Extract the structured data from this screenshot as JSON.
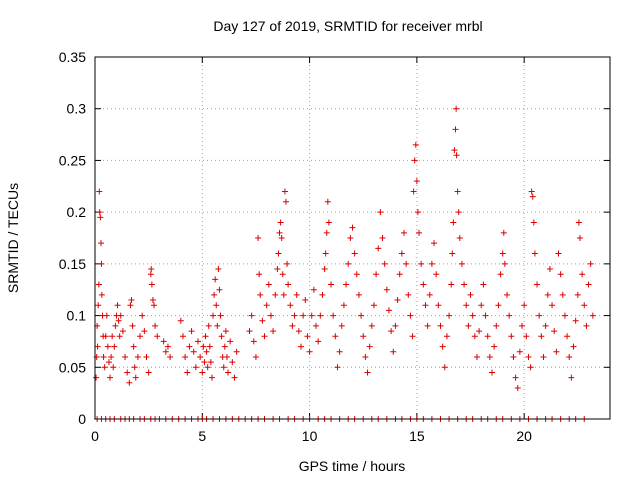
{
  "chart_data": {
    "type": "scatter",
    "title": "Day 127 of 2019, SRMTID for receiver mrbl",
    "xlabel": "GPS time / hours",
    "ylabel": "SRMTID / TECUs",
    "xlim": [
      0,
      24
    ],
    "ylim": [
      0,
      0.35
    ],
    "xticks": [
      0,
      5,
      10,
      15,
      20
    ],
    "yticks": [
      0,
      0.05,
      0.1,
      0.15,
      0.2,
      0.25,
      0.3,
      0.35
    ],
    "ytick_labels": [
      "0",
      "0.05",
      "0.1",
      "0.15",
      "0.2",
      "0.25",
      "0.3",
      "0.35"
    ],
    "marker": "+",
    "color": "#dd0000",
    "grid": true,
    "series": [
      {
        "name": "SRMTID",
        "points": [
          [
            0.05,
            0.04
          ],
          [
            0.08,
            0.06
          ],
          [
            0.1,
            0.09
          ],
          [
            0.12,
            0.07
          ],
          [
            0.15,
            0.11
          ],
          [
            0.18,
            0.13
          ],
          [
            0.2,
            0.22
          ],
          [
            0.22,
            0.2
          ],
          [
            0.25,
            0.195
          ],
          [
            0.28,
            0.17
          ],
          [
            0.3,
            0.15
          ],
          [
            0.32,
            0.12
          ],
          [
            0.35,
            0.1
          ],
          [
            0.38,
            0.08
          ],
          [
            0.4,
            0.06
          ],
          [
            0.45,
            0.05
          ],
          [
            0.5,
            0.08
          ],
          [
            0.55,
            0.1
          ],
          [
            0.6,
            0.07
          ],
          [
            0.65,
            0.055
          ],
          [
            0.7,
            0.04
          ],
          [
            0.75,
            0.06
          ],
          [
            0.8,
            0.08
          ],
          [
            0.85,
            0.05
          ],
          [
            0.9,
            0.07
          ],
          [
            0.95,
            0.09
          ],
          [
            1.0,
            0.1
          ],
          [
            1.05,
            0.11
          ],
          [
            1.1,
            0.095
          ],
          [
            1.15,
            0.08
          ],
          [
            1.2,
            0.1
          ],
          [
            1.3,
            0.085
          ],
          [
            1.4,
            0.06
          ],
          [
            1.5,
            0.045
          ],
          [
            1.6,
            0.035
          ],
          [
            1.65,
            0.11
          ],
          [
            1.7,
            0.115
          ],
          [
            1.75,
            0.09
          ],
          [
            1.8,
            0.07
          ],
          [
            1.85,
            0.05
          ],
          [
            1.9,
            0.04
          ],
          [
            2.0,
            0.06
          ],
          [
            2.1,
            0.08
          ],
          [
            2.2,
            0.1
          ],
          [
            2.3,
            0.085
          ],
          [
            2.4,
            0.06
          ],
          [
            2.5,
            0.045
          ],
          [
            2.6,
            0.14
          ],
          [
            2.62,
            0.145
          ],
          [
            2.65,
            0.13
          ],
          [
            2.7,
            0.115
          ],
          [
            2.75,
            0.11
          ],
          [
            2.8,
            0.09
          ],
          [
            2.9,
            0.08
          ],
          [
            3.2,
            0.075
          ],
          [
            3.3,
            0.065
          ],
          [
            3.4,
            0.07
          ],
          [
            3.5,
            0.06
          ],
          [
            4.0,
            0.095
          ],
          [
            4.1,
            0.08
          ],
          [
            4.2,
            0.06
          ],
          [
            4.3,
            0.045
          ],
          [
            4.4,
            0.07
          ],
          [
            4.5,
            0.085
          ],
          [
            4.6,
            0.065
          ],
          [
            4.7,
            0.05
          ],
          [
            4.8,
            0.075
          ],
          [
            4.9,
            0.06
          ],
          [
            5.0,
            0.045
          ],
          [
            5.05,
            0.07
          ],
          [
            5.1,
            0.055
          ],
          [
            5.15,
            0.08
          ],
          [
            5.2,
            0.065
          ],
          [
            5.25,
            0.05
          ],
          [
            5.3,
            0.09
          ],
          [
            5.35,
            0.07
          ],
          [
            5.4,
            0.055
          ],
          [
            5.45,
            0.04
          ],
          [
            5.5,
            0.1
          ],
          [
            5.55,
            0.12
          ],
          [
            5.6,
            0.135
          ],
          [
            5.65,
            0.11
          ],
          [
            5.7,
            0.09
          ],
          [
            5.75,
            0.145
          ],
          [
            5.8,
            0.125
          ],
          [
            5.85,
            0.1
          ],
          [
            5.9,
            0.08
          ],
          [
            5.95,
            0.06
          ],
          [
            6.0,
            0.05
          ],
          [
            6.05,
            0.07
          ],
          [
            6.1,
            0.085
          ],
          [
            6.15,
            0.06
          ],
          [
            6.2,
            0.045
          ],
          [
            6.3,
            0.075
          ],
          [
            6.4,
            0.055
          ],
          [
            6.5,
            0.04
          ],
          [
            6.6,
            0.065
          ],
          [
            7.2,
            0.085
          ],
          [
            7.3,
            0.1
          ],
          [
            7.4,
            0.075
          ],
          [
            7.5,
            0.06
          ],
          [
            7.6,
            0.175
          ],
          [
            7.65,
            0.14
          ],
          [
            7.7,
            0.12
          ],
          [
            7.8,
            0.095
          ],
          [
            7.9,
            0.08
          ],
          [
            8.0,
            0.11
          ],
          [
            8.1,
            0.13
          ],
          [
            8.2,
            0.1
          ],
          [
            8.3,
            0.085
          ],
          [
            8.4,
            0.12
          ],
          [
            8.5,
            0.145
          ],
          [
            8.55,
            0.16
          ],
          [
            8.6,
            0.18
          ],
          [
            8.65,
            0.19
          ],
          [
            8.7,
            0.175
          ],
          [
            8.75,
            0.14
          ],
          [
            8.8,
            0.12
          ],
          [
            8.85,
            0.22
          ],
          [
            8.9,
            0.21
          ],
          [
            8.95,
            0.15
          ],
          [
            9.0,
            0.13
          ],
          [
            9.1,
            0.11
          ],
          [
            9.2,
            0.09
          ],
          [
            9.3,
            0.1
          ],
          [
            9.4,
            0.12
          ],
          [
            9.5,
            0.085
          ],
          [
            9.6,
            0.07
          ],
          [
            9.7,
            0.1
          ],
          [
            9.8,
            0.115
          ],
          [
            9.9,
            0.08
          ],
          [
            10.0,
            0.065
          ],
          [
            10.1,
            0.1
          ],
          [
            10.2,
            0.125
          ],
          [
            10.3,
            0.09
          ],
          [
            10.4,
            0.075
          ],
          [
            10.5,
            0.1
          ],
          [
            10.6,
            0.12
          ],
          [
            10.7,
            0.145
          ],
          [
            10.75,
            0.16
          ],
          [
            10.8,
            0.18
          ],
          [
            10.85,
            0.21
          ],
          [
            10.9,
            0.19
          ],
          [
            11.0,
            0.13
          ],
          [
            11.1,
            0.1
          ],
          [
            11.2,
            0.08
          ],
          [
            11.3,
            0.05
          ],
          [
            11.4,
            0.065
          ],
          [
            11.5,
            0.09
          ],
          [
            11.6,
            0.11
          ],
          [
            11.7,
            0.13
          ],
          [
            11.8,
            0.15
          ],
          [
            11.9,
            0.175
          ],
          [
            12.0,
            0.185
          ],
          [
            12.1,
            0.16
          ],
          [
            12.2,
            0.14
          ],
          [
            12.3,
            0.12
          ],
          [
            12.4,
            0.1
          ],
          [
            12.5,
            0.08
          ],
          [
            12.6,
            0.06
          ],
          [
            12.7,
            0.045
          ],
          [
            12.8,
            0.07
          ],
          [
            12.9,
            0.09
          ],
          [
            13.0,
            0.11
          ],
          [
            13.1,
            0.14
          ],
          [
            13.2,
            0.165
          ],
          [
            13.3,
            0.2
          ],
          [
            13.4,
            0.175
          ],
          [
            13.5,
            0.15
          ],
          [
            13.6,
            0.125
          ],
          [
            13.7,
            0.105
          ],
          [
            13.8,
            0.085
          ],
          [
            13.9,
            0.065
          ],
          [
            14.0,
            0.09
          ],
          [
            14.1,
            0.115
          ],
          [
            14.2,
            0.14
          ],
          [
            14.3,
            0.16
          ],
          [
            14.4,
            0.18
          ],
          [
            14.5,
            0.15
          ],
          [
            14.6,
            0.12
          ],
          [
            14.7,
            0.1
          ],
          [
            14.8,
            0.08
          ],
          [
            14.85,
            0.22
          ],
          [
            14.9,
            0.25
          ],
          [
            14.95,
            0.265
          ],
          [
            15.0,
            0.23
          ],
          [
            15.05,
            0.2
          ],
          [
            15.1,
            0.18
          ],
          [
            15.2,
            0.15
          ],
          [
            15.3,
            0.13
          ],
          [
            15.4,
            0.11
          ],
          [
            15.5,
            0.09
          ],
          [
            15.6,
            0.12
          ],
          [
            15.7,
            0.15
          ],
          [
            15.8,
            0.17
          ],
          [
            15.9,
            0.14
          ],
          [
            16.0,
            0.11
          ],
          [
            16.1,
            0.09
          ],
          [
            16.2,
            0.07
          ],
          [
            16.3,
            0.05
          ],
          [
            16.4,
            0.08
          ],
          [
            16.5,
            0.1
          ],
          [
            16.6,
            0.13
          ],
          [
            16.65,
            0.16
          ],
          [
            16.7,
            0.19
          ],
          [
            16.75,
            0.26
          ],
          [
            16.8,
            0.28
          ],
          [
            16.83,
            0.3
          ],
          [
            16.85,
            0.255
          ],
          [
            16.9,
            0.22
          ],
          [
            16.95,
            0.2
          ],
          [
            17.0,
            0.175
          ],
          [
            17.1,
            0.15
          ],
          [
            17.2,
            0.13
          ],
          [
            17.3,
            0.11
          ],
          [
            17.4,
            0.09
          ],
          [
            17.5,
            0.12
          ],
          [
            17.6,
            0.1
          ],
          [
            17.7,
            0.08
          ],
          [
            17.8,
            0.06
          ],
          [
            17.9,
            0.085
          ],
          [
            18.0,
            0.11
          ],
          [
            18.1,
            0.13
          ],
          [
            18.2,
            0.1
          ],
          [
            18.3,
            0.08
          ],
          [
            18.4,
            0.06
          ],
          [
            18.5,
            0.045
          ],
          [
            18.6,
            0.07
          ],
          [
            18.7,
            0.09
          ],
          [
            18.8,
            0.11
          ],
          [
            18.9,
            0.14
          ],
          [
            19.0,
            0.16
          ],
          [
            19.05,
            0.18
          ],
          [
            19.1,
            0.15
          ],
          [
            19.2,
            0.12
          ],
          [
            19.3,
            0.1
          ],
          [
            19.4,
            0.08
          ],
          [
            19.5,
            0.06
          ],
          [
            19.6,
            0.04
          ],
          [
            19.7,
            0.03
          ],
          [
            19.8,
            0.065
          ],
          [
            19.9,
            0.09
          ],
          [
            20.0,
            0.11
          ],
          [
            20.1,
            0.08
          ],
          [
            20.2,
            0.06
          ],
          [
            20.3,
            0.05
          ],
          [
            20.35,
            0.22
          ],
          [
            20.4,
            0.215
          ],
          [
            20.45,
            0.19
          ],
          [
            20.5,
            0.16
          ],
          [
            20.6,
            0.13
          ],
          [
            20.7,
            0.1
          ],
          [
            20.8,
            0.08
          ],
          [
            20.9,
            0.06
          ],
          [
            21.0,
            0.09
          ],
          [
            21.1,
            0.12
          ],
          [
            21.2,
            0.145
          ],
          [
            21.3,
            0.11
          ],
          [
            21.4,
            0.085
          ],
          [
            21.5,
            0.065
          ],
          [
            21.6,
            0.16
          ],
          [
            21.7,
            0.14
          ],
          [
            21.8,
            0.12
          ],
          [
            21.9,
            0.1
          ],
          [
            22.0,
            0.08
          ],
          [
            22.1,
            0.06
          ],
          [
            22.2,
            0.04
          ],
          [
            22.3,
            0.07
          ],
          [
            22.4,
            0.095
          ],
          [
            22.5,
            0.12
          ],
          [
            22.55,
            0.19
          ],
          [
            22.6,
            0.175
          ],
          [
            22.7,
            0.14
          ],
          [
            22.8,
            0.11
          ],
          [
            22.9,
            0.09
          ],
          [
            23.0,
            0.13
          ],
          [
            23.1,
            0.15
          ],
          [
            23.2,
            0.1
          ]
        ]
      }
    ],
    "zero_points_x": [
      0.1,
      0.3,
      0.5,
      0.7,
      0.9,
      1.2,
      1.4,
      1.6,
      1.8,
      2.1,
      2.3,
      2.6,
      2.8,
      3.0,
      3.3,
      3.6,
      3.9,
      4.2,
      4.5,
      4.8,
      5.0,
      5.2,
      5.5,
      5.8,
      6.1,
      6.4,
      6.7,
      7.0,
      7.3,
      7.6,
      7.9,
      8.3,
      8.6,
      9.0,
      9.3,
      9.7,
      10.0,
      10.4,
      10.7,
      11.0,
      11.4,
      11.8,
      12.1,
      12.5,
      12.9,
      13.2,
      13.6,
      14.0,
      14.3,
      14.7,
      15.0,
      15.3,
      15.7,
      16.1,
      16.5,
      16.9,
      17.3,
      17.6,
      18.0,
      18.3,
      18.7,
      19.0,
      19.4,
      19.8,
      20.2,
      20.6,
      21.0,
      21.3,
      21.7,
      22.1,
      22.4,
      22.8
    ]
  }
}
